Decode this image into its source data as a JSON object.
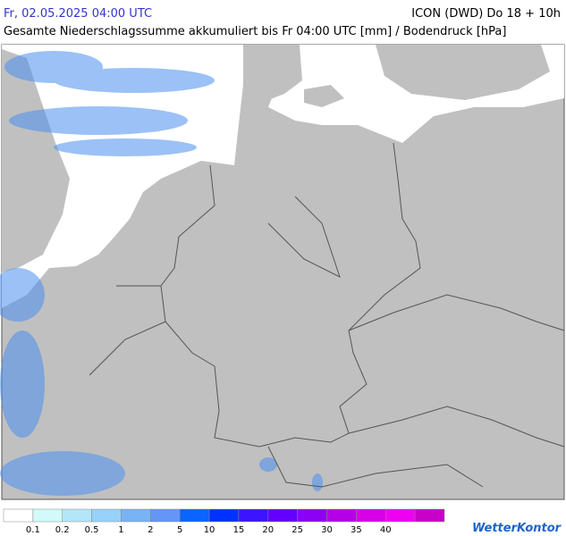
{
  "header": {
    "datetime": "Fr, 02.05.2025 04:00 UTC",
    "model": "ICON (DWD) Do 18 + 10h",
    "title": "Gesamte Niederschlagssumme akkumuliert bis Fr 04:00 UTC [mm] / Bodendruck [hPa]"
  },
  "legend": {
    "colors": [
      "#ffffff",
      "#d2fafa",
      "#b4e6fa",
      "#96d2fa",
      "#78b4f5",
      "#6496f5",
      "#0a64ff",
      "#0032ff",
      "#3c14ff",
      "#6400ff",
      "#8c00f5",
      "#b400e6",
      "#d700e6",
      "#f000f0",
      "#c800c8"
    ],
    "labels": [
      "0.1",
      "0.2",
      "0.5",
      "1",
      "2",
      "5",
      "10",
      "15",
      "20",
      "25",
      "30",
      "35",
      "40"
    ]
  },
  "logo": "WetterKontor"
}
